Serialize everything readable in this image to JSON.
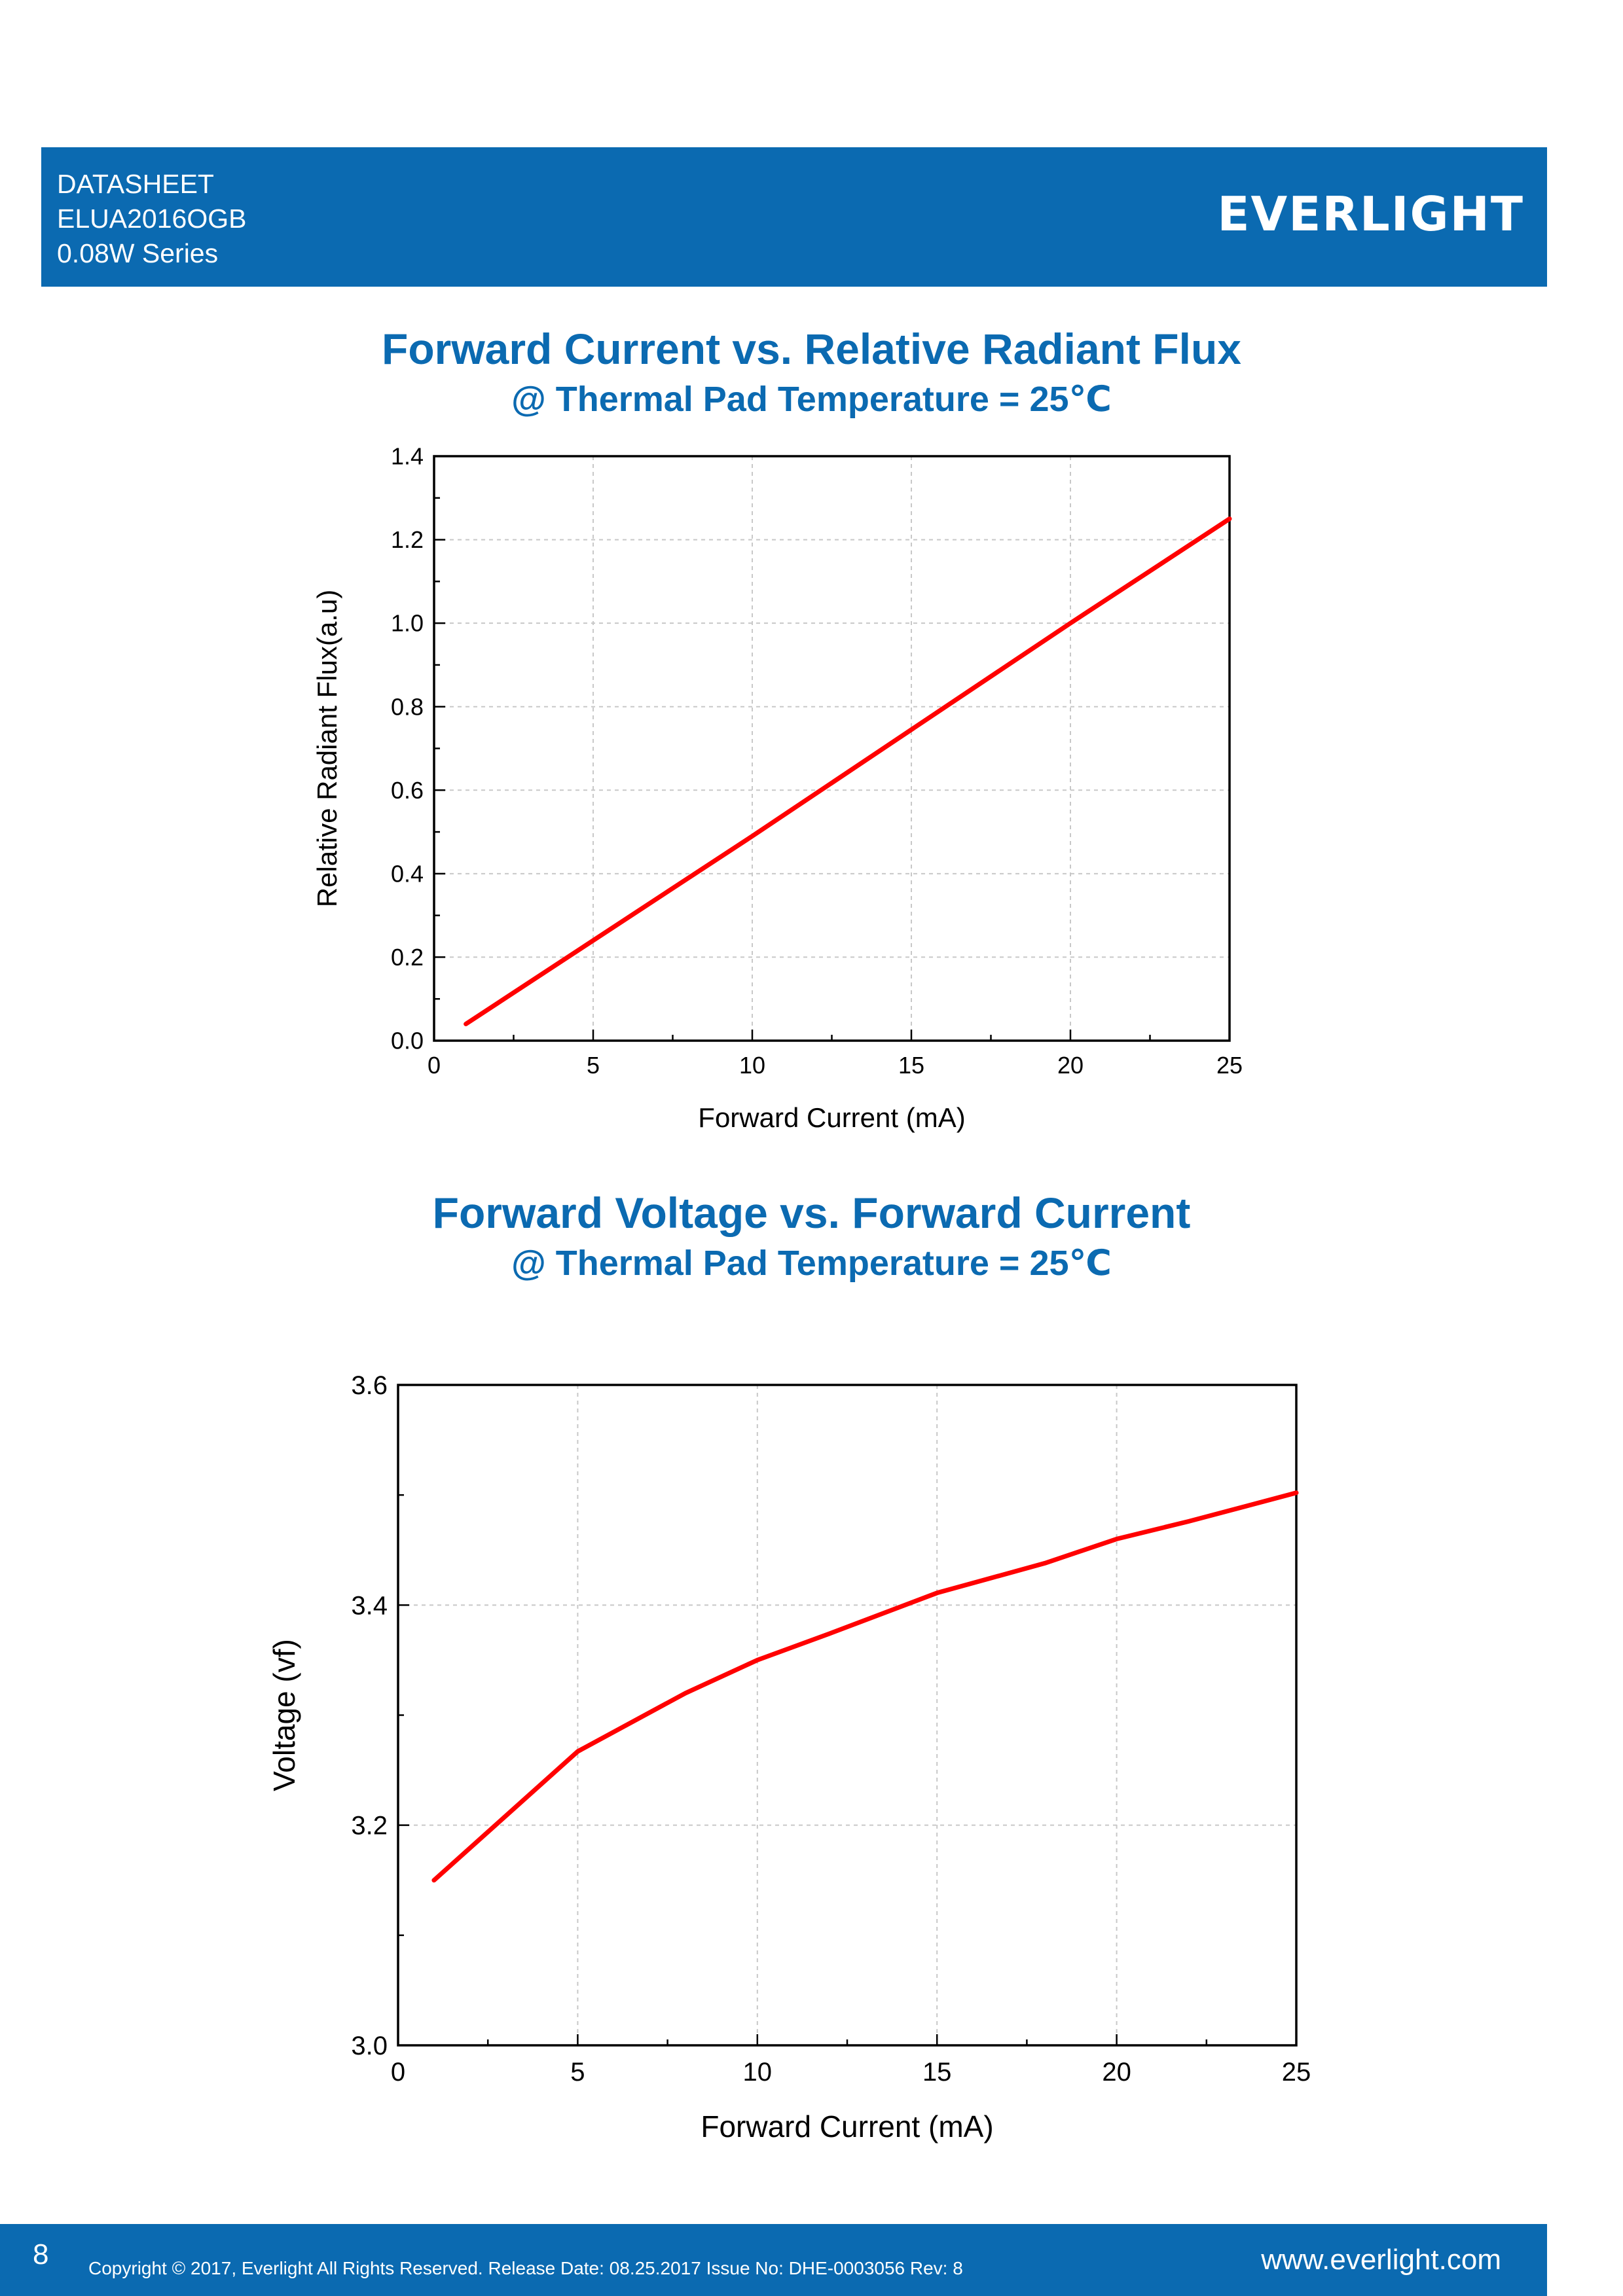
{
  "header": {
    "line1": "DATASHEET",
    "line2": "ELUA2016OGB",
    "line3": "0.08W Series",
    "logo_text": "EVERLIGHT",
    "color": "#0b6ab1"
  },
  "chart_data": [
    {
      "type": "line",
      "title": "Forward Current vs. Relative Radiant Flux",
      "subtitle": "@ Thermal Pad Temperature = 25℃",
      "xlabel": "Forward Current (mA)",
      "ylabel": "Relative Radiant Flux(a.u)",
      "xlim": [
        0,
        25
      ],
      "ylim": [
        0,
        1.4
      ],
      "xticks": [
        "0",
        "5",
        "10",
        "15",
        "20",
        "25"
      ],
      "yticks": [
        "0.0",
        "0.2",
        "0.4",
        "0.6",
        "0.8",
        "1.0",
        "1.2",
        "1.4"
      ],
      "grid": true,
      "series": [
        {
          "color": "#ff0000",
          "x": [
            1,
            5,
            10,
            15,
            20,
            25
          ],
          "y": [
            0.04,
            0.24,
            0.49,
            0.745,
            1.0,
            1.25
          ]
        }
      ]
    },
    {
      "type": "line",
      "title": "Forward Voltage vs. Forward Current",
      "subtitle": "@ Thermal Pad Temperature = 25℃",
      "xlabel": "Forward Current (mA)",
      "ylabel": "Voltage (vf)",
      "xlim": [
        0,
        25
      ],
      "ylim": [
        3.0,
        3.6
      ],
      "xticks": [
        "0",
        "5",
        "10",
        "15",
        "20",
        "25"
      ],
      "yticks": [
        "3.0",
        "3.2",
        "3.4",
        "3.6"
      ],
      "grid": true,
      "series": [
        {
          "color": "#ff0000",
          "x": [
            1,
            5,
            8,
            10,
            12,
            15,
            18,
            20,
            22,
            25
          ],
          "y": [
            3.15,
            3.267,
            3.32,
            3.35,
            3.374,
            3.411,
            3.438,
            3.46,
            3.476,
            3.502
          ]
        }
      ]
    }
  ],
  "footer": {
    "page": "8",
    "copyright": "Copyright © 2017, Everlight All Rights Reserved. Release Date: 08.25.2017 Issue No: DHE-0003056 Rev: 8",
    "website": "www.everlight.com"
  }
}
